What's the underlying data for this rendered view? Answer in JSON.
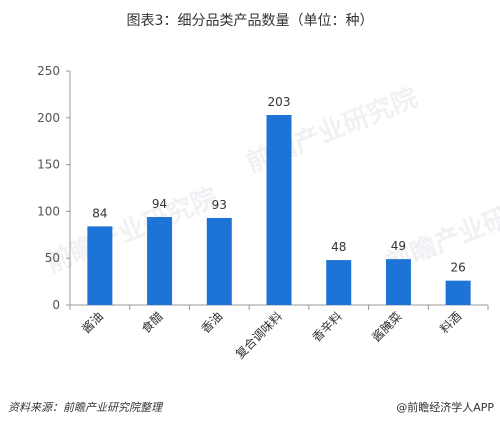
{
  "title": "图表3：细分品类产品数量（单位：种）",
  "chart_data": {
    "type": "bar",
    "categories": [
      "酱油",
      "食醋",
      "香油",
      "复合调味料",
      "香辛料",
      "酱腌菜",
      "料酒"
    ],
    "values": [
      84,
      94,
      93,
      203,
      48,
      49,
      26
    ],
    "ylim": [
      0,
      250
    ],
    "yticks": [
      0,
      50,
      100,
      150,
      200,
      250
    ],
    "grid": false,
    "bar_color": "#1e73d6"
  },
  "footer": {
    "source": "资料来源：前瞻产业研究院整理",
    "logo": "@前瞻经济学人APP"
  },
  "watermark": "前瞻产业研究院"
}
